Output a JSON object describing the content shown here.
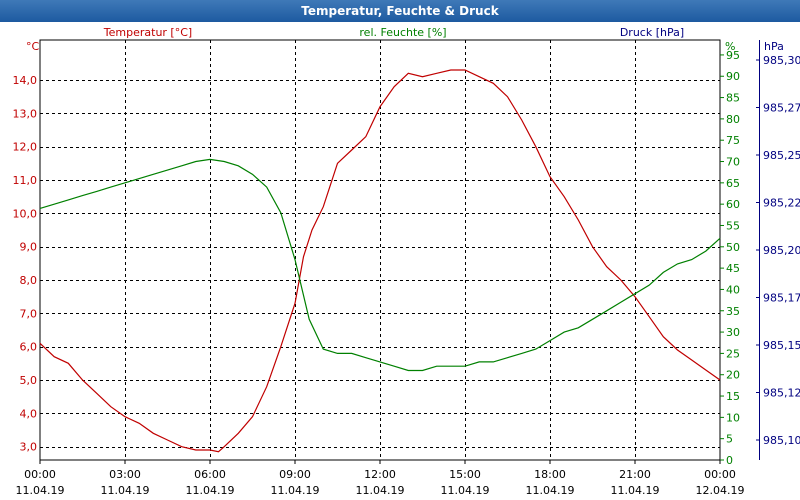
{
  "window": {
    "title": "Temperatur, Feuchte & Druck"
  },
  "colors": {
    "temperature": "#c00000",
    "humidity": "#008000",
    "pressure": "#000080",
    "grid": "#000000",
    "title_bar": "#2a66a8"
  },
  "chart_data": {
    "type": "line",
    "title": "Temperatur, Feuchte & Druck",
    "grid": true,
    "series_labels": {
      "temperature": "Temperatur [°C]",
      "humidity": "rel. Feuchte [%]",
      "pressure": "Druck [hPa]"
    },
    "axes": {
      "temperature": {
        "unit": "°C",
        "ylim": [
          2.6,
          15.2
        ],
        "ticks": [
          "3,0",
          "4,0",
          "5,0",
          "6,0",
          "7,0",
          "8,0",
          "9,0",
          "10,0",
          "11,0",
          "12,0",
          "13,0",
          "14,0"
        ],
        "tick_values": [
          3,
          4,
          5,
          6,
          7,
          8,
          9,
          10,
          11,
          12,
          13,
          14
        ]
      },
      "humidity": {
        "unit": "%",
        "ylim": [
          0,
          98.5
        ],
        "ticks": [
          "0",
          "5",
          "10",
          "15",
          "20",
          "25",
          "30",
          "35",
          "40",
          "45",
          "50",
          "55",
          "60",
          "65",
          "70",
          "75",
          "80",
          "85",
          "90",
          "95"
        ],
        "tick_values": [
          0,
          5,
          10,
          15,
          20,
          25,
          30,
          35,
          40,
          45,
          50,
          55,
          60,
          65,
          70,
          75,
          80,
          85,
          90,
          95
        ]
      },
      "pressure": {
        "unit": "hPa",
        "ticks": [
          "985,10",
          "985,12",
          "985,15",
          "985,17",
          "985,20",
          "985,22",
          "985,25",
          "985,27",
          "985,30"
        ]
      },
      "x": {
        "ticks": [
          {
            "time": "00:00",
            "date": "11.04.19"
          },
          {
            "time": "03:00",
            "date": "11.04.19"
          },
          {
            "time": "06:00",
            "date": "11.04.19"
          },
          {
            "time": "09:00",
            "date": "11.04.19"
          },
          {
            "time": "12:00",
            "date": "11.04.19"
          },
          {
            "time": "15:00",
            "date": "11.04.19"
          },
          {
            "time": "18:00",
            "date": "11.04.19"
          },
          {
            "time": "21:00",
            "date": "11.04.19"
          },
          {
            "time": "00:00",
            "date": "12.04.19"
          }
        ],
        "range_hours": [
          0,
          24
        ]
      }
    },
    "series": [
      {
        "name": "Temperatur [°C]",
        "axis": "temperature",
        "x_hours": [
          0,
          0.5,
          1,
          1.5,
          2,
          2.5,
          3,
          3.5,
          4,
          4.5,
          5,
          5.5,
          6,
          6.3,
          6.5,
          7,
          7.5,
          8,
          8.5,
          9,
          9.3,
          9.6,
          10,
          10.5,
          11,
          11.5,
          12,
          12.5,
          13,
          13.5,
          14,
          14.5,
          15,
          15.5,
          16,
          16.5,
          17,
          17.5,
          18,
          18.5,
          19,
          19.5,
          20,
          20.5,
          21,
          21.5,
          22,
          22.5,
          23,
          23.5,
          24
        ],
        "values": [
          6.1,
          5.7,
          5.5,
          5.0,
          4.6,
          4.2,
          3.9,
          3.7,
          3.4,
          3.2,
          3.0,
          2.9,
          2.9,
          2.85,
          3.0,
          3.4,
          3.9,
          4.8,
          6.0,
          7.3,
          8.7,
          9.5,
          10.2,
          11.5,
          11.9,
          12.3,
          13.2,
          13.8,
          14.2,
          14.1,
          14.2,
          14.3,
          14.3,
          14.1,
          13.9,
          13.5,
          12.8,
          12.0,
          11.1,
          10.5,
          9.8,
          9.0,
          8.4,
          8.0,
          7.5,
          6.9,
          6.3,
          5.9,
          5.6,
          5.3,
          5.0
        ]
      },
      {
        "name": "rel. Feuchte [%]",
        "axis": "humidity",
        "x_hours": [
          0,
          0.5,
          1,
          1.5,
          2,
          2.5,
          3,
          3.5,
          4,
          4.5,
          5,
          5.5,
          6,
          6.5,
          7,
          7.5,
          8,
          8.5,
          9,
          9.5,
          10,
          10.5,
          11,
          11.5,
          12,
          12.5,
          13,
          13.5,
          14,
          14.5,
          15,
          15.5,
          16,
          16.5,
          17,
          17.5,
          18,
          18.5,
          19,
          19.5,
          20,
          20.5,
          21,
          21.5,
          22,
          22.5,
          23,
          23.5,
          24
        ],
        "values": [
          59,
          60,
          61,
          62,
          63,
          64,
          65,
          66,
          67,
          68,
          69,
          70,
          70.5,
          70,
          69,
          67,
          64,
          58,
          47,
          33,
          26,
          25,
          25,
          24,
          23,
          22,
          21,
          21,
          22,
          22,
          22,
          23,
          23,
          24,
          25,
          26,
          28,
          30,
          31,
          33,
          35,
          37,
          39,
          41,
          44,
          46,
          47,
          49,
          52
        ]
      }
    ]
  }
}
